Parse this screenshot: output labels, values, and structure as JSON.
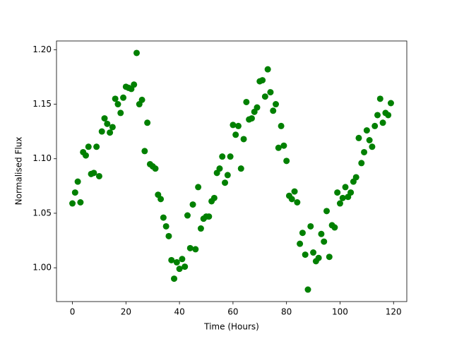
{
  "chart_data": {
    "type": "scatter",
    "xlabel": "Time (Hours)",
    "ylabel": "Normalised Flux",
    "color": "#008000",
    "x": [
      0,
      1,
      2,
      3,
      4,
      5,
      6,
      7,
      8,
      9,
      10,
      11,
      12,
      13,
      14,
      15,
      16,
      17,
      18,
      19,
      20,
      21,
      22,
      23,
      24,
      25,
      26,
      27,
      28,
      29,
      30,
      31,
      32,
      33,
      34,
      35,
      36,
      37,
      38,
      39,
      40,
      41,
      42,
      43,
      44,
      45,
      46,
      47,
      48,
      49,
      50,
      51,
      52,
      53,
      54,
      55,
      56,
      57,
      58,
      59,
      60,
      61,
      62,
      63,
      64,
      65,
      66,
      67,
      68,
      69,
      70,
      71,
      72,
      73,
      74,
      75,
      76,
      77,
      78,
      79,
      80,
      81,
      82,
      83,
      84,
      85,
      86,
      87,
      88,
      89,
      90,
      91,
      92,
      93,
      94,
      95,
      96,
      97,
      98,
      99,
      100,
      101,
      102,
      103,
      104,
      105,
      106,
      107,
      108,
      109,
      110,
      111,
      112,
      113,
      114,
      115,
      116,
      117,
      118,
      119
    ],
    "values": [
      1.059,
      1.069,
      1.079,
      1.06,
      1.106,
      1.103,
      1.111,
      1.086,
      1.087,
      1.111,
      1.084,
      1.125,
      1.137,
      1.132,
      1.124,
      1.129,
      1.155,
      1.15,
      1.142,
      1.156,
      1.166,
      1.165,
      1.164,
      1.168,
      1.197,
      1.15,
      1.154,
      1.107,
      1.133,
      1.095,
      1.093,
      1.091,
      1.067,
      1.063,
      1.046,
      1.038,
      1.029,
      1.007,
      0.99,
      1.005,
      0.999,
      1.008,
      1.001,
      1.048,
      1.018,
      1.058,
      1.017,
      1.074,
      1.036,
      1.045,
      1.047,
      1.047,
      1.061,
      1.064,
      1.087,
      1.091,
      1.102,
      1.078,
      1.085,
      1.102,
      1.131,
      1.122,
      1.13,
      1.091,
      1.118,
      1.152,
      1.136,
      1.137,
      1.143,
      1.147,
      1.171,
      1.172,
      1.157,
      1.182,
      1.161,
      1.144,
      1.15,
      1.11,
      1.13,
      1.112,
      1.098,
      1.066,
      1.063,
      1.07,
      1.06,
      1.022,
      1.032,
      1.012,
      0.98,
      1.038,
      1.014,
      1.006,
      1.009,
      1.031,
      1.024,
      1.052,
      1.01,
      1.039,
      1.037,
      1.069,
      1.059,
      1.064,
      1.074,
      1.065,
      1.069,
      1.079,
      1.083,
      1.119,
      1.096,
      1.106,
      1.126,
      1.117,
      1.111,
      1.13,
      1.14,
      1.155,
      1.133,
      1.142,
      1.14,
      1.151
    ],
    "xlim": [
      -5.95,
      124.95
    ],
    "xticks": [
      0,
      20,
      40,
      60,
      80,
      100,
      120
    ],
    "ylim": [
      0.969,
      1.208
    ],
    "yticks": [
      {
        "value": 1,
        "label": "1.00"
      },
      1.05,
      {
        "value": 1.1,
        "label": "1.10"
      },
      1.15,
      {
        "value": 1.2,
        "label": "1.20"
      }
    ]
  }
}
